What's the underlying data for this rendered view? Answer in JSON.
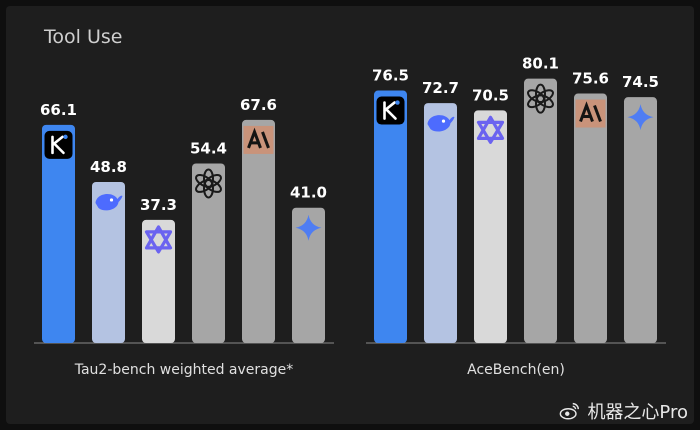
{
  "title": "Tool Use",
  "watermark": "机器之心Pro",
  "chart_data": [
    {
      "type": "bar",
      "xlabel": "Tau2-bench weighted average*",
      "categories": [
        "kimi",
        "deepseek",
        "qwen",
        "openai",
        "anthropic",
        "gemini"
      ],
      "values": [
        66.1,
        48.8,
        37.3,
        54.4,
        67.6,
        41.0
      ],
      "labels": [
        "66.1",
        "48.8",
        "37.3",
        "54.4",
        "67.6",
        "41.0"
      ],
      "colors": [
        "#3e86f0",
        "#b4c3e2",
        "#d9d9d9",
        "#a6a6a6",
        "#a6a6a6",
        "#a6a6a6"
      ],
      "logo_bg": [
        "#000000",
        "#b4c3e2",
        "#d9d9d9",
        "#a6a6a6",
        "#c9937a",
        "#a6a6a6"
      ],
      "icons": [
        "kimi-icon",
        "deepseek-icon",
        "qwen-icon",
        "openai-icon",
        "anthropic-icon",
        "gemini-icon"
      ],
      "ylim": [
        0,
        100
      ]
    },
    {
      "type": "bar",
      "xlabel": "AceBench(en)",
      "categories": [
        "kimi",
        "deepseek",
        "qwen",
        "openai",
        "anthropic",
        "gemini"
      ],
      "values": [
        76.5,
        72.7,
        70.5,
        80.1,
        75.6,
        74.5
      ],
      "labels": [
        "76.5",
        "72.7",
        "70.5",
        "80.1",
        "75.6",
        "74.5"
      ],
      "colors": [
        "#3e86f0",
        "#b4c3e2",
        "#d9d9d9",
        "#a6a6a6",
        "#a6a6a6",
        "#a6a6a6"
      ],
      "logo_bg": [
        "#000000",
        "#b4c3e2",
        "#d9d9d9",
        "#a6a6a6",
        "#c9937a",
        "#a6a6a6"
      ],
      "icons": [
        "kimi-icon",
        "deepseek-icon",
        "qwen-icon",
        "openai-icon",
        "anthropic-icon",
        "gemini-icon"
      ],
      "ylim": [
        0,
        100
      ]
    }
  ]
}
